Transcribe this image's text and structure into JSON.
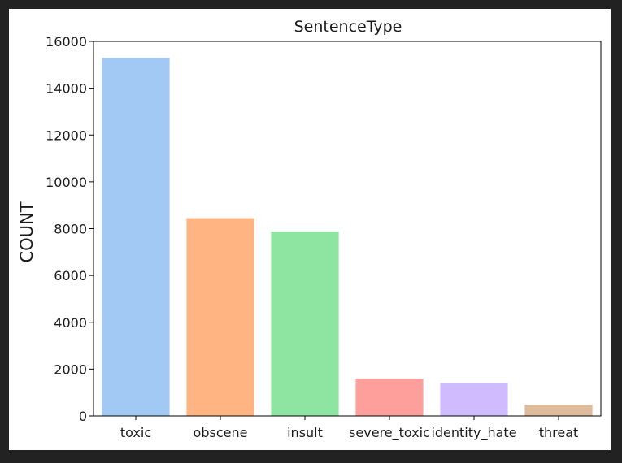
{
  "chart_data": {
    "type": "bar",
    "title": "SentenceType",
    "xlabel": "",
    "ylabel": "COUNT",
    "categories": [
      "toxic",
      "obscene",
      "insult",
      "severe_toxic",
      "identity_hate",
      "threat"
    ],
    "values": [
      15294,
      8449,
      7877,
      1595,
      1405,
      478
    ],
    "colors": [
      "#a1c9f4",
      "#ffb482",
      "#8de5a1",
      "#ff9f9b",
      "#d0bbff",
      "#debb9b"
    ],
    "ylim": [
      0,
      16000
    ],
    "yticks": [
      0,
      2000,
      4000,
      6000,
      8000,
      10000,
      12000,
      14000,
      16000
    ],
    "grid": false,
    "legend": "none"
  }
}
